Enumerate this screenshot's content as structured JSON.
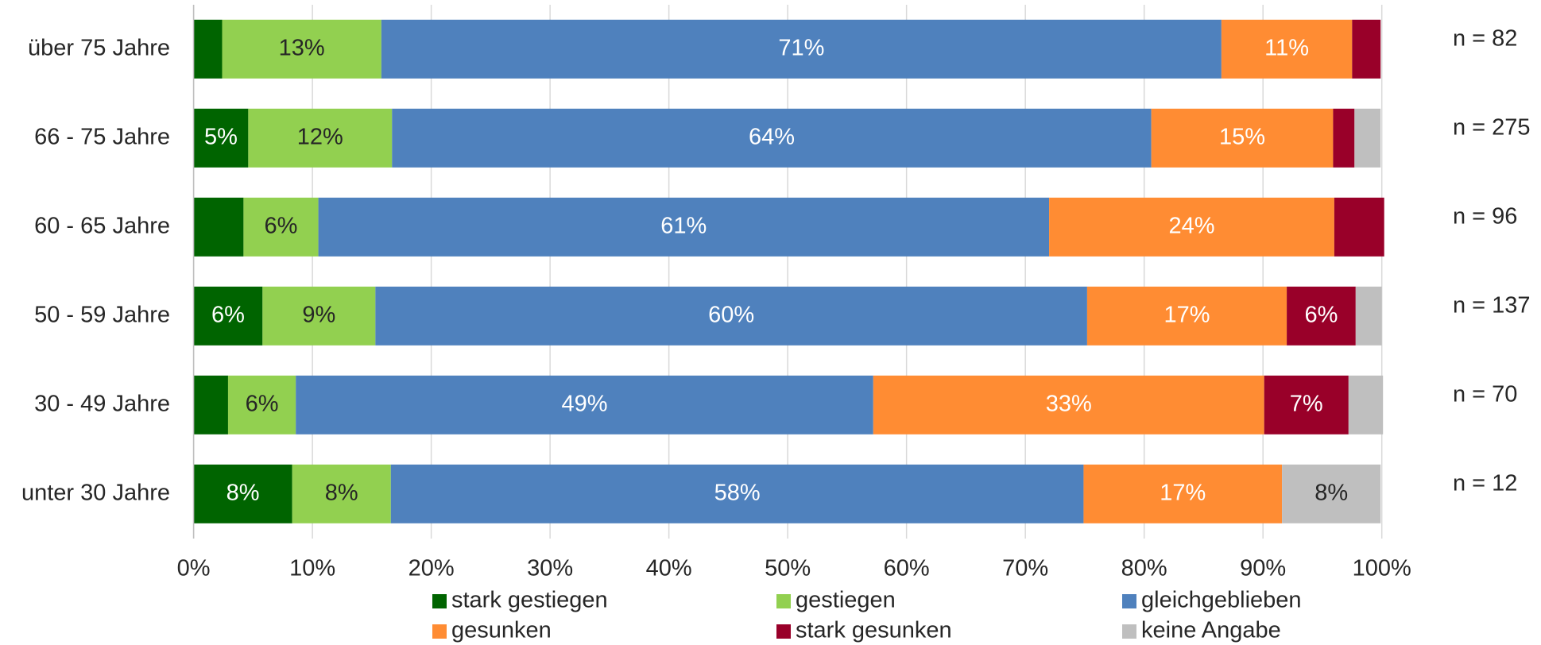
{
  "chart_data": {
    "type": "stacked-barh",
    "categories": [
      "über 75 Jahre",
      "66 - 75 Jahre",
      "60 - 65 Jahre",
      "50 - 59 Jahre",
      "30 - 49 Jahre",
      "unter 30 Jahre"
    ],
    "n_labels": [
      "n = 82",
      "n = 275",
      "n = 96",
      "n = 137",
      "n = 70",
      "n = 12"
    ],
    "series": [
      {
        "name": "stark gestiegen",
        "color": "#006400",
        "label_color": "#ffffff",
        "values": [
          2.4,
          4.6,
          4.2,
          5.8,
          2.9,
          8.3
        ],
        "value_labels": [
          null,
          "5%",
          null,
          "6%",
          null,
          "8%"
        ]
      },
      {
        "name": "gestiegen",
        "color": "#92d050",
        "label_color": "#262626",
        "values": [
          13.4,
          12.1,
          6.3,
          9.5,
          5.7,
          8.3
        ],
        "value_labels": [
          "13%",
          "12%",
          "6%",
          "9%",
          "6%",
          "8%"
        ]
      },
      {
        "name": "gleichgeblieben",
        "color": "#4f81bd",
        "label_color": "#ffffff",
        "values": [
          70.7,
          63.9,
          61.5,
          59.9,
          48.6,
          58.3
        ],
        "value_labels": [
          "71%",
          "64%",
          "61%",
          "60%",
          "49%",
          "58%"
        ]
      },
      {
        "name": "gesunken",
        "color": "#ff8c33",
        "label_color": "#ffffff",
        "values": [
          11.0,
          15.3,
          24.0,
          16.8,
          32.9,
          16.7
        ],
        "value_labels": [
          "11%",
          "15%",
          "24%",
          "17%",
          "33%",
          "17%"
        ]
      },
      {
        "name": "stark gesunken",
        "color": "#990029",
        "label_color": "#ffffff",
        "values": [
          2.4,
          1.8,
          4.2,
          5.8,
          7.1,
          0
        ],
        "value_labels": [
          null,
          null,
          null,
          "6%",
          "7%",
          null
        ]
      },
      {
        "name": "keine Angabe",
        "color": "#bfbfbf",
        "label_color": "#262626",
        "values": [
          0,
          2.2,
          0,
          2.2,
          2.9,
          8.3
        ],
        "value_labels": [
          null,
          null,
          null,
          null,
          null,
          "8%"
        ]
      }
    ],
    "xlim": [
      0,
      100
    ],
    "xticks": [
      {
        "value": 0,
        "label": "0%"
      },
      {
        "value": 10,
        "label": "10%"
      },
      {
        "value": 20,
        "label": "20%"
      },
      {
        "value": 30,
        "label": "30%"
      },
      {
        "value": 40,
        "label": "40%"
      },
      {
        "value": 50,
        "label": "50%"
      },
      {
        "value": 60,
        "label": "60%"
      },
      {
        "value": 70,
        "label": "70%"
      },
      {
        "value": 80,
        "label": "80%"
      },
      {
        "value": 90,
        "label": "90%"
      },
      {
        "value": 100,
        "label": "100%"
      }
    ],
    "grid": true
  }
}
